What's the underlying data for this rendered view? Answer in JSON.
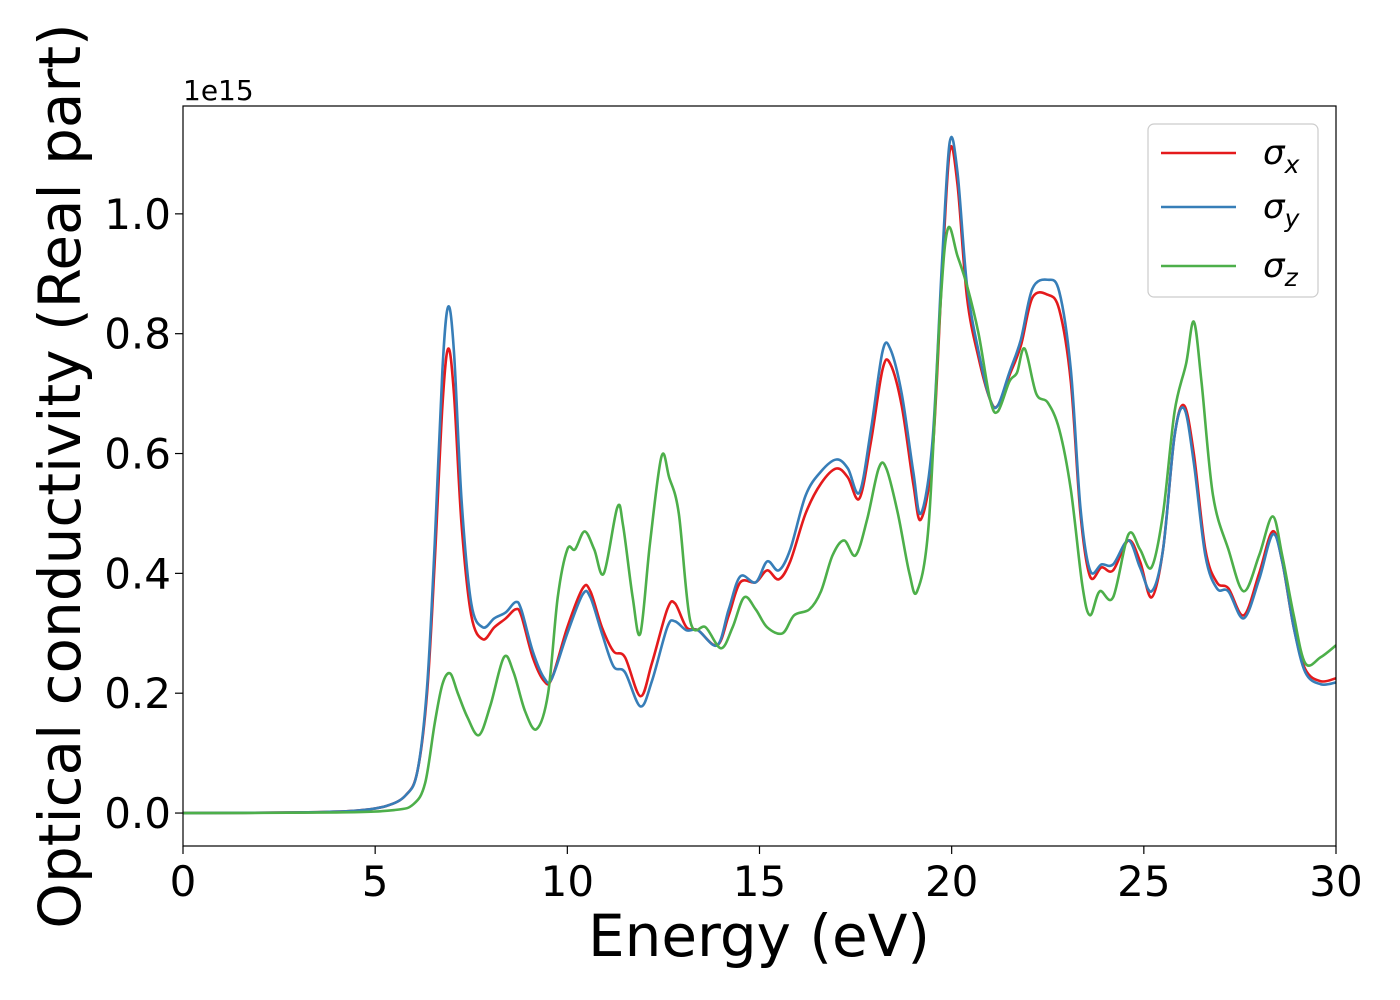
{
  "chart_data": {
    "type": "line",
    "title": "",
    "xlabel": "Energy (eV)",
    "ylabel": "Optical conductivity (Real part)",
    "offset_text": "1e15",
    "xlim": [
      0,
      30
    ],
    "ylim": [
      -0.055,
      1.18
    ],
    "x_ticks": [
      0,
      5,
      10,
      15,
      20,
      25,
      30
    ],
    "x_tick_labels": [
      "0",
      "5",
      "10",
      "15",
      "20",
      "25",
      "30"
    ],
    "y_ticks": [
      0.0,
      0.2,
      0.4,
      0.6,
      0.8,
      1.0
    ],
    "y_tick_labels": [
      "0.0",
      "0.2",
      "0.4",
      "0.6",
      "0.8",
      "1.0"
    ],
    "grid": false,
    "legend_position": "top-right",
    "series": [
      {
        "name": "σx",
        "label_base": "σ",
        "label_sub": "x",
        "color": "#e41a1c",
        "points": [
          [
            0,
            0
          ],
          [
            3,
            0.001
          ],
          [
            4.5,
            0.004
          ],
          [
            5.3,
            0.012
          ],
          [
            5.8,
            0.03
          ],
          [
            6.1,
            0.07
          ],
          [
            6.35,
            0.2
          ],
          [
            6.55,
            0.42
          ],
          [
            6.75,
            0.68
          ],
          [
            6.9,
            0.775
          ],
          [
            7.05,
            0.7
          ],
          [
            7.25,
            0.48
          ],
          [
            7.5,
            0.33
          ],
          [
            7.8,
            0.29
          ],
          [
            8.1,
            0.31
          ],
          [
            8.4,
            0.325
          ],
          [
            8.65,
            0.34
          ],
          [
            8.8,
            0.33
          ],
          [
            9.1,
            0.26
          ],
          [
            9.4,
            0.22
          ],
          [
            9.6,
            0.225
          ],
          [
            10.0,
            0.31
          ],
          [
            10.4,
            0.375
          ],
          [
            10.6,
            0.37
          ],
          [
            10.9,
            0.31
          ],
          [
            11.2,
            0.27
          ],
          [
            11.5,
            0.26
          ],
          [
            11.9,
            0.195
          ],
          [
            12.2,
            0.25
          ],
          [
            12.6,
            0.34
          ],
          [
            12.8,
            0.35
          ],
          [
            13.1,
            0.31
          ],
          [
            13.4,
            0.305
          ],
          [
            13.9,
            0.28
          ],
          [
            14.2,
            0.33
          ],
          [
            14.5,
            0.385
          ],
          [
            14.9,
            0.385
          ],
          [
            15.2,
            0.405
          ],
          [
            15.5,
            0.39
          ],
          [
            15.8,
            0.42
          ],
          [
            16.2,
            0.5
          ],
          [
            16.6,
            0.55
          ],
          [
            17.0,
            0.575
          ],
          [
            17.3,
            0.56
          ],
          [
            17.6,
            0.525
          ],
          [
            17.9,
            0.62
          ],
          [
            18.2,
            0.74
          ],
          [
            18.4,
            0.75
          ],
          [
            18.7,
            0.68
          ],
          [
            19.0,
            0.55
          ],
          [
            19.2,
            0.49
          ],
          [
            19.5,
            0.6
          ],
          [
            19.75,
            0.9
          ],
          [
            19.95,
            1.105
          ],
          [
            20.15,
            1.05
          ],
          [
            20.4,
            0.86
          ],
          [
            20.7,
            0.76
          ],
          [
            21.0,
            0.69
          ],
          [
            21.2,
            0.68
          ],
          [
            21.5,
            0.73
          ],
          [
            21.8,
            0.78
          ],
          [
            22.1,
            0.86
          ],
          [
            22.5,
            0.865
          ],
          [
            22.8,
            0.84
          ],
          [
            23.1,
            0.72
          ],
          [
            23.35,
            0.5
          ],
          [
            23.6,
            0.395
          ],
          [
            23.9,
            0.41
          ],
          [
            24.2,
            0.405
          ],
          [
            24.6,
            0.455
          ],
          [
            24.9,
            0.42
          ],
          [
            25.2,
            0.36
          ],
          [
            25.5,
            0.44
          ],
          [
            25.8,
            0.63
          ],
          [
            26.05,
            0.68
          ],
          [
            26.3,
            0.6
          ],
          [
            26.6,
            0.44
          ],
          [
            26.9,
            0.385
          ],
          [
            27.2,
            0.375
          ],
          [
            27.6,
            0.33
          ],
          [
            28.0,
            0.4
          ],
          [
            28.35,
            0.47
          ],
          [
            28.6,
            0.42
          ],
          [
            28.9,
            0.31
          ],
          [
            29.2,
            0.24
          ],
          [
            29.6,
            0.22
          ],
          [
            30,
            0.225
          ]
        ]
      },
      {
        "name": "σy",
        "label_base": "σ",
        "label_sub": "y",
        "color": "#377eb8",
        "points": [
          [
            0,
            0
          ],
          [
            3,
            0.001
          ],
          [
            4.5,
            0.004
          ],
          [
            5.3,
            0.012
          ],
          [
            5.8,
            0.03
          ],
          [
            6.1,
            0.07
          ],
          [
            6.35,
            0.21
          ],
          [
            6.55,
            0.45
          ],
          [
            6.75,
            0.74
          ],
          [
            6.9,
            0.845
          ],
          [
            7.05,
            0.77
          ],
          [
            7.25,
            0.52
          ],
          [
            7.5,
            0.35
          ],
          [
            7.8,
            0.31
          ],
          [
            8.1,
            0.325
          ],
          [
            8.4,
            0.335
          ],
          [
            8.65,
            0.352
          ],
          [
            8.8,
            0.34
          ],
          [
            9.1,
            0.27
          ],
          [
            9.4,
            0.225
          ],
          [
            9.6,
            0.225
          ],
          [
            10.0,
            0.3
          ],
          [
            10.4,
            0.365
          ],
          [
            10.6,
            0.36
          ],
          [
            10.9,
            0.3
          ],
          [
            11.2,
            0.245
          ],
          [
            11.5,
            0.235
          ],
          [
            11.9,
            0.178
          ],
          [
            12.2,
            0.22
          ],
          [
            12.6,
            0.31
          ],
          [
            12.8,
            0.32
          ],
          [
            13.1,
            0.305
          ],
          [
            13.4,
            0.305
          ],
          [
            13.9,
            0.28
          ],
          [
            14.2,
            0.34
          ],
          [
            14.5,
            0.395
          ],
          [
            14.9,
            0.385
          ],
          [
            15.2,
            0.42
          ],
          [
            15.5,
            0.405
          ],
          [
            15.8,
            0.44
          ],
          [
            16.2,
            0.53
          ],
          [
            16.6,
            0.57
          ],
          [
            17.0,
            0.59
          ],
          [
            17.3,
            0.575
          ],
          [
            17.6,
            0.535
          ],
          [
            17.9,
            0.64
          ],
          [
            18.2,
            0.77
          ],
          [
            18.4,
            0.775
          ],
          [
            18.7,
            0.7
          ],
          [
            19.0,
            0.57
          ],
          [
            19.2,
            0.5
          ],
          [
            19.5,
            0.62
          ],
          [
            19.75,
            0.92
          ],
          [
            19.95,
            1.12
          ],
          [
            20.15,
            1.07
          ],
          [
            20.4,
            0.88
          ],
          [
            20.7,
            0.77
          ],
          [
            21.0,
            0.69
          ],
          [
            21.2,
            0.68
          ],
          [
            21.5,
            0.735
          ],
          [
            21.8,
            0.79
          ],
          [
            22.1,
            0.875
          ],
          [
            22.5,
            0.89
          ],
          [
            22.8,
            0.87
          ],
          [
            23.1,
            0.74
          ],
          [
            23.35,
            0.51
          ],
          [
            23.6,
            0.405
          ],
          [
            23.9,
            0.415
          ],
          [
            24.2,
            0.415
          ],
          [
            24.6,
            0.455
          ],
          [
            24.9,
            0.41
          ],
          [
            25.2,
            0.37
          ],
          [
            25.5,
            0.44
          ],
          [
            25.8,
            0.63
          ],
          [
            26.05,
            0.675
          ],
          [
            26.3,
            0.585
          ],
          [
            26.6,
            0.43
          ],
          [
            26.9,
            0.375
          ],
          [
            27.2,
            0.37
          ],
          [
            27.6,
            0.325
          ],
          [
            28.0,
            0.39
          ],
          [
            28.35,
            0.465
          ],
          [
            28.6,
            0.42
          ],
          [
            28.9,
            0.31
          ],
          [
            29.2,
            0.235
          ],
          [
            29.6,
            0.215
          ],
          [
            30,
            0.218
          ]
        ]
      },
      {
        "name": "σz",
        "label_base": "σ",
        "label_sub": "z",
        "color": "#4daf4a",
        "points": [
          [
            0,
            0
          ],
          [
            4,
            0.001
          ],
          [
            5.5,
            0.005
          ],
          [
            6.0,
            0.015
          ],
          [
            6.3,
            0.05
          ],
          [
            6.55,
            0.15
          ],
          [
            6.75,
            0.215
          ],
          [
            6.95,
            0.233
          ],
          [
            7.15,
            0.2
          ],
          [
            7.4,
            0.16
          ],
          [
            7.7,
            0.13
          ],
          [
            8.0,
            0.18
          ],
          [
            8.35,
            0.26
          ],
          [
            8.6,
            0.235
          ],
          [
            8.9,
            0.17
          ],
          [
            9.2,
            0.14
          ],
          [
            9.5,
            0.2
          ],
          [
            9.75,
            0.36
          ],
          [
            10.0,
            0.44
          ],
          [
            10.2,
            0.44
          ],
          [
            10.45,
            0.47
          ],
          [
            10.7,
            0.44
          ],
          [
            10.95,
            0.4
          ],
          [
            11.3,
            0.51
          ],
          [
            11.45,
            0.48
          ],
          [
            11.7,
            0.36
          ],
          [
            11.9,
            0.3
          ],
          [
            12.15,
            0.45
          ],
          [
            12.45,
            0.595
          ],
          [
            12.65,
            0.56
          ],
          [
            12.9,
            0.5
          ],
          [
            13.2,
            0.32
          ],
          [
            13.6,
            0.31
          ],
          [
            14.0,
            0.275
          ],
          [
            14.3,
            0.31
          ],
          [
            14.6,
            0.36
          ],
          [
            14.9,
            0.34
          ],
          [
            15.2,
            0.31
          ],
          [
            15.6,
            0.3
          ],
          [
            15.9,
            0.33
          ],
          [
            16.3,
            0.34
          ],
          [
            16.6,
            0.37
          ],
          [
            16.9,
            0.43
          ],
          [
            17.2,
            0.455
          ],
          [
            17.5,
            0.43
          ],
          [
            17.8,
            0.49
          ],
          [
            18.1,
            0.575
          ],
          [
            18.3,
            0.575
          ],
          [
            18.6,
            0.5
          ],
          [
            18.9,
            0.4
          ],
          [
            19.1,
            0.37
          ],
          [
            19.4,
            0.48
          ],
          [
            19.7,
            0.84
          ],
          [
            19.9,
            0.975
          ],
          [
            20.15,
            0.93
          ],
          [
            20.4,
            0.88
          ],
          [
            20.7,
            0.8
          ],
          [
            21.0,
            0.69
          ],
          [
            21.2,
            0.67
          ],
          [
            21.5,
            0.72
          ],
          [
            21.7,
            0.735
          ],
          [
            21.9,
            0.775
          ],
          [
            22.2,
            0.7
          ],
          [
            22.5,
            0.685
          ],
          [
            22.8,
            0.64
          ],
          [
            23.1,
            0.54
          ],
          [
            23.4,
            0.38
          ],
          [
            23.6,
            0.33
          ],
          [
            23.85,
            0.37
          ],
          [
            24.2,
            0.36
          ],
          [
            24.6,
            0.465
          ],
          [
            24.9,
            0.44
          ],
          [
            25.2,
            0.41
          ],
          [
            25.5,
            0.5
          ],
          [
            25.8,
            0.67
          ],
          [
            26.1,
            0.75
          ],
          [
            26.3,
            0.82
          ],
          [
            26.5,
            0.72
          ],
          [
            26.8,
            0.53
          ],
          [
            27.2,
            0.44
          ],
          [
            27.6,
            0.37
          ],
          [
            28.0,
            0.43
          ],
          [
            28.35,
            0.495
          ],
          [
            28.6,
            0.43
          ],
          [
            28.9,
            0.33
          ],
          [
            29.2,
            0.25
          ],
          [
            29.6,
            0.26
          ],
          [
            30,
            0.28
          ]
        ]
      }
    ]
  }
}
